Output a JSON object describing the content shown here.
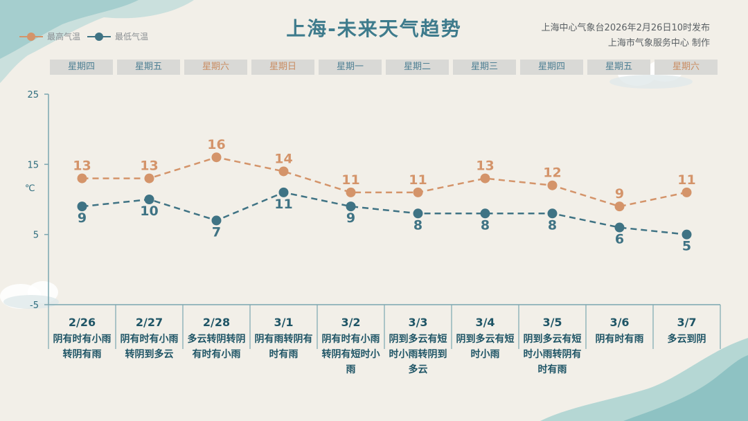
{
  "title": "上海-未来天气趋势",
  "issuer": {
    "line1": "上海中心气象台2026年2月26日10时发布",
    "line2": "上海市气象服务中心  制作"
  },
  "legend": {
    "high_label": "最高气温",
    "low_label": "最低气温"
  },
  "colors": {
    "high": "#d4946a",
    "low": "#3f7384",
    "axis": "#7aa6b0",
    "title": "#3e7b8c"
  },
  "weekdays": [
    "星期四",
    "星期五",
    "星期六",
    "星期日",
    "星期一",
    "星期二",
    "星期三",
    "星期四",
    "星期五",
    "星期六"
  ],
  "weekend_flags": [
    false,
    false,
    true,
    true,
    false,
    false,
    false,
    false,
    false,
    true
  ],
  "descriptions": [
    "阴有时有小雨转阴有雨",
    "阴有时有小雨转阴到多云",
    "多云转阴转阴有时有小雨",
    "阴有雨转阴有时有雨",
    "阴有时有小雨转阴有短时小雨",
    "阴到多云有短时小雨转阴到多云",
    "阴到多云有短时小雨",
    "阴到多云有短时小雨转阴有时有雨",
    "阴有时有雨",
    "多云到阴"
  ],
  "chart_data": {
    "type": "line",
    "categories": [
      "2/26",
      "2/27",
      "2/28",
      "3/1",
      "3/2",
      "3/3",
      "3/4",
      "3/5",
      "3/6",
      "3/7"
    ],
    "series": [
      {
        "name": "最高气温",
        "values": [
          13,
          13,
          16,
          14,
          11,
          11,
          13,
          12,
          9,
          11
        ]
      },
      {
        "name": "最低气温",
        "values": [
          9,
          10,
          7,
          11,
          9,
          8,
          8,
          8,
          6,
          5
        ]
      }
    ],
    "yticks": [
      "25",
      "15",
      "5",
      "-5"
    ],
    "ylim": [
      -5,
      25
    ],
    "ylabel": "℃",
    "legend_position": "top-left",
    "line_style": "dashed"
  }
}
